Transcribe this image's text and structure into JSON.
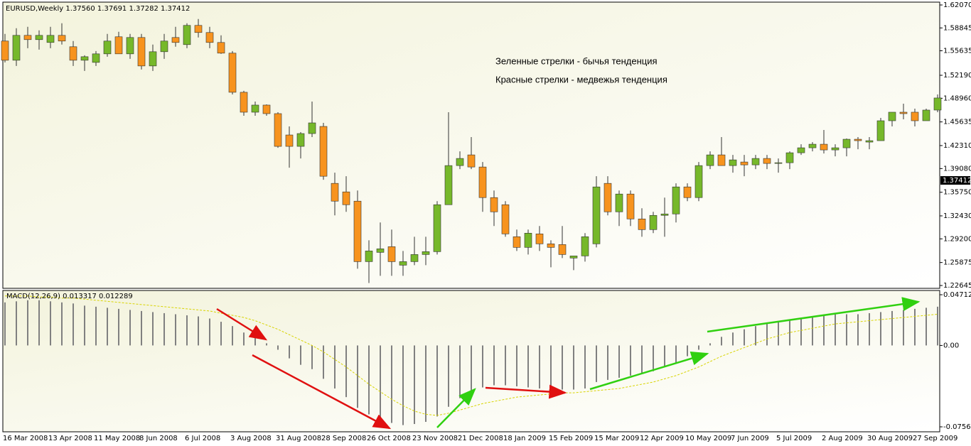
{
  "chart_data": [
    {
      "type": "candlestick",
      "title": "EURUSD,Weekly  1.37560 1.37691 1.37282 1.37412",
      "annotations": [
        "Зеленные стрелки - бычья тенденция",
        "Красные стрелки - медвежья тенденция"
      ],
      "categories": [
        "16 Mar 2008",
        null,
        null,
        null,
        "13 Apr 2008",
        null,
        null,
        null,
        "11 May 2008",
        null,
        null,
        null,
        "8 Jun 2008",
        null,
        null,
        null,
        "6 Jul 2008",
        null,
        null,
        null,
        "3 Aug 2008",
        null,
        null,
        null,
        "31 Aug 2008",
        null,
        null,
        null,
        "28 Sep 2008",
        null,
        null,
        null,
        "26 Oct 2008",
        null,
        null,
        null,
        "23 Nov 2008",
        null,
        null,
        null,
        "21 Dec 2008",
        null,
        null,
        null,
        "18 Jan 2009",
        null,
        null,
        null,
        "15 Feb 2009",
        null,
        null,
        null,
        "15 Mar 2009",
        null,
        null,
        null,
        "12 Apr 2009",
        null,
        null,
        null,
        "10 May 2009",
        null,
        null,
        null,
        "7 Jun 2009",
        null,
        null,
        null,
        "5 Jul 2009",
        null,
        null,
        null,
        "2 Aug 2009",
        null,
        null,
        null,
        "30 Aug 2009",
        null,
        null,
        null,
        "27 Sep 2009",
        null,
        null
      ],
      "open": [
        1.57,
        1.543,
        1.578,
        1.572,
        1.568,
        1.578,
        1.562,
        1.543,
        1.54,
        1.552,
        1.576,
        1.552,
        1.575,
        1.535,
        1.555,
        1.575,
        1.565,
        1.592,
        1.582,
        1.568,
        1.553,
        1.498,
        1.47,
        1.48,
        1.468,
        1.438,
        1.422,
        1.44,
        1.45,
        1.37,
        1.358,
        1.345,
        1.26,
        1.273,
        1.281,
        1.255,
        1.26,
        1.27,
        1.274,
        1.34,
        1.395,
        1.41,
        1.393,
        1.35,
        1.34,
        1.295,
        1.28,
        1.299,
        1.285,
        1.284,
        1.265,
        1.268,
        1.285,
        1.37,
        1.33,
        1.355,
        1.32,
        1.305,
        1.325,
        1.327,
        1.365,
        1.35,
        1.395,
        1.41,
        1.395,
        1.4,
        1.396,
        1.405,
        1.398,
        1.399,
        1.413,
        1.42,
        1.425,
        1.417,
        1.42,
        1.432,
        1.428,
        1.43,
        1.458,
        1.47,
        1.47,
        1.458,
        1.473
      ],
      "high": [
        1.58,
        1.588,
        1.59,
        1.585,
        1.59,
        1.595,
        1.57,
        1.55,
        1.556,
        1.58,
        1.583,
        1.58,
        1.58,
        1.565,
        1.58,
        1.59,
        1.595,
        1.601,
        1.59,
        1.578,
        1.556,
        1.5,
        1.485,
        1.481,
        1.47,
        1.45,
        1.442,
        1.485,
        1.455,
        1.385,
        1.38,
        1.36,
        1.29,
        1.315,
        1.305,
        1.275,
        1.295,
        1.295,
        1.345,
        1.47,
        1.415,
        1.435,
        1.4,
        1.36,
        1.345,
        1.305,
        1.305,
        1.31,
        1.29,
        1.31,
        1.268,
        1.3,
        1.38,
        1.38,
        1.36,
        1.36,
        1.335,
        1.33,
        1.35,
        1.37,
        1.37,
        1.4,
        1.415,
        1.435,
        1.41,
        1.41,
        1.41,
        1.41,
        1.405,
        1.415,
        1.425,
        1.428,
        1.445,
        1.425,
        1.433,
        1.435,
        1.435,
        1.462,
        1.47,
        1.482,
        1.475,
        1.475,
        1.495
      ],
      "low": [
        1.54,
        1.535,
        1.56,
        1.558,
        1.56,
        1.565,
        1.535,
        1.528,
        1.535,
        1.548,
        1.552,
        1.545,
        1.53,
        1.528,
        1.545,
        1.562,
        1.56,
        1.575,
        1.56,
        1.552,
        1.495,
        1.465,
        1.465,
        1.465,
        1.42,
        1.392,
        1.405,
        1.435,
        1.375,
        1.325,
        1.33,
        1.25,
        1.23,
        1.24,
        1.24,
        1.24,
        1.255,
        1.255,
        1.27,
        1.34,
        1.39,
        1.39,
        1.33,
        1.31,
        1.295,
        1.275,
        1.27,
        1.275,
        1.252,
        1.265,
        1.248,
        1.26,
        1.28,
        1.325,
        1.31,
        1.31,
        1.295,
        1.3,
        1.295,
        1.315,
        1.345,
        1.345,
        1.39,
        1.395,
        1.385,
        1.38,
        1.39,
        1.39,
        1.385,
        1.39,
        1.41,
        1.415,
        1.412,
        1.408,
        1.408,
        1.418,
        1.418,
        1.43,
        1.45,
        1.46,
        1.45,
        1.458,
        1.47
      ],
      "close": [
        1.543,
        1.578,
        1.572,
        1.578,
        1.578,
        1.57,
        1.543,
        1.548,
        1.552,
        1.57,
        1.552,
        1.575,
        1.535,
        1.555,
        1.57,
        1.568,
        1.592,
        1.582,
        1.568,
        1.553,
        1.498,
        1.47,
        1.48,
        1.468,
        1.422,
        1.422,
        1.44,
        1.455,
        1.38,
        1.345,
        1.34,
        1.26,
        1.275,
        1.278,
        1.26,
        1.26,
        1.27,
        1.274,
        1.34,
        1.395,
        1.405,
        1.393,
        1.35,
        1.33,
        1.299,
        1.28,
        1.3,
        1.285,
        1.28,
        1.27,
        1.268,
        1.295,
        1.365,
        1.33,
        1.355,
        1.32,
        1.305,
        1.325,
        1.327,
        1.365,
        1.35,
        1.395,
        1.41,
        1.395,
        1.403,
        1.396,
        1.405,
        1.398,
        1.399,
        1.413,
        1.42,
        1.425,
        1.417,
        1.42,
        1.432,
        1.43,
        1.43,
        1.458,
        1.47,
        1.468,
        1.458,
        1.473,
        1.49
      ],
      "up_color": "#76b82a",
      "down_color": "#f7931e",
      "ylim": [
        1.22645,
        1.6207
      ],
      "yticks": [
        {
          "value": 1.6207,
          "label": "1.62070"
        },
        1.58845,
        1.55635,
        {
          "value": 1.5219,
          "label": "1.52190"
        },
        {
          "value": 1.4896,
          "label": "1.48960"
        },
        1.45635,
        {
          "value": 1.4231,
          "label": "1.42310"
        },
        {
          "value": 1.3908,
          "label": "1.39080"
        },
        {
          "value": 1.3575,
          "label": "1.35750"
        },
        {
          "value": 1.3243,
          "label": "1.32430"
        },
        {
          "value": 1.292,
          "label": "1.29200"
        },
        1.25875,
        1.22645
      ],
      "current_price": 1.37412
    },
    {
      "type": "macd",
      "title": "MACD(12,26,9) 0.013317 0.012289",
      "series": [
        {
          "color": "#808080",
          "values": [
            0.04,
            0.041,
            0.042,
            0.042,
            0.041,
            0.04,
            0.039,
            0.037,
            0.036,
            0.035,
            0.034,
            0.033,
            0.032,
            0.031,
            0.03,
            0.029,
            0.028,
            0.027,
            0.025,
            0.022,
            0.018,
            0.012,
            0.007,
            0.002,
            -0.004,
            -0.012,
            -0.018,
            -0.022,
            -0.031,
            -0.04,
            -0.048,
            -0.058,
            -0.064,
            -0.069,
            -0.072,
            -0.074,
            -0.073,
            -0.071,
            -0.066,
            -0.057,
            -0.049,
            -0.042,
            -0.039,
            -0.037,
            -0.037,
            -0.038,
            -0.039,
            -0.04,
            -0.041,
            -0.041,
            -0.041,
            -0.04,
            -0.034,
            -0.032,
            -0.03,
            -0.028,
            -0.026,
            -0.024,
            -0.02,
            -0.016,
            -0.01,
            -0.004,
            0.002,
            0.008,
            0.012,
            0.015,
            0.018,
            0.02,
            0.022,
            0.023,
            0.025,
            0.027,
            0.028,
            0.029,
            0.029,
            0.029,
            0.03,
            0.031,
            0.032,
            0.033,
            0.034,
            0.035,
            0.036
          ]
        },
        {
          "color": "#d8d400",
          "values": [
            0.046,
            0.046,
            0.046,
            0.045,
            0.045,
            0.044,
            0.044,
            0.043,
            0.042,
            0.041,
            0.04,
            0.039,
            0.038,
            0.037,
            0.036,
            0.035,
            0.034,
            0.033,
            0.032,
            0.03,
            0.028,
            0.026,
            0.023,
            0.019,
            0.015,
            0.01,
            0.005,
            0.0,
            -0.006,
            -0.013,
            -0.02,
            -0.028,
            -0.036,
            -0.043,
            -0.05,
            -0.056,
            -0.061,
            -0.064,
            -0.065,
            -0.063,
            -0.06,
            -0.057,
            -0.054,
            -0.052,
            -0.05,
            -0.048,
            -0.047,
            -0.046,
            -0.045,
            -0.044,
            -0.044,
            -0.043,
            -0.042,
            -0.041,
            -0.04,
            -0.038,
            -0.036,
            -0.034,
            -0.031,
            -0.028,
            -0.024,
            -0.02,
            -0.015,
            -0.01,
            -0.006,
            -0.002,
            0.002,
            0.006,
            0.009,
            0.012,
            0.014,
            0.016,
            0.018,
            0.02,
            0.021,
            0.022,
            0.023,
            0.024,
            0.025,
            0.026,
            0.027,
            0.028,
            0.029
          ]
        }
      ],
      "ylim": [
        -0.075608,
        0.047122
      ],
      "yticks": [
        0.047122,
        {
          "value": 0,
          "label": "0.00"
        },
        -0.075608
      ]
    }
  ]
}
